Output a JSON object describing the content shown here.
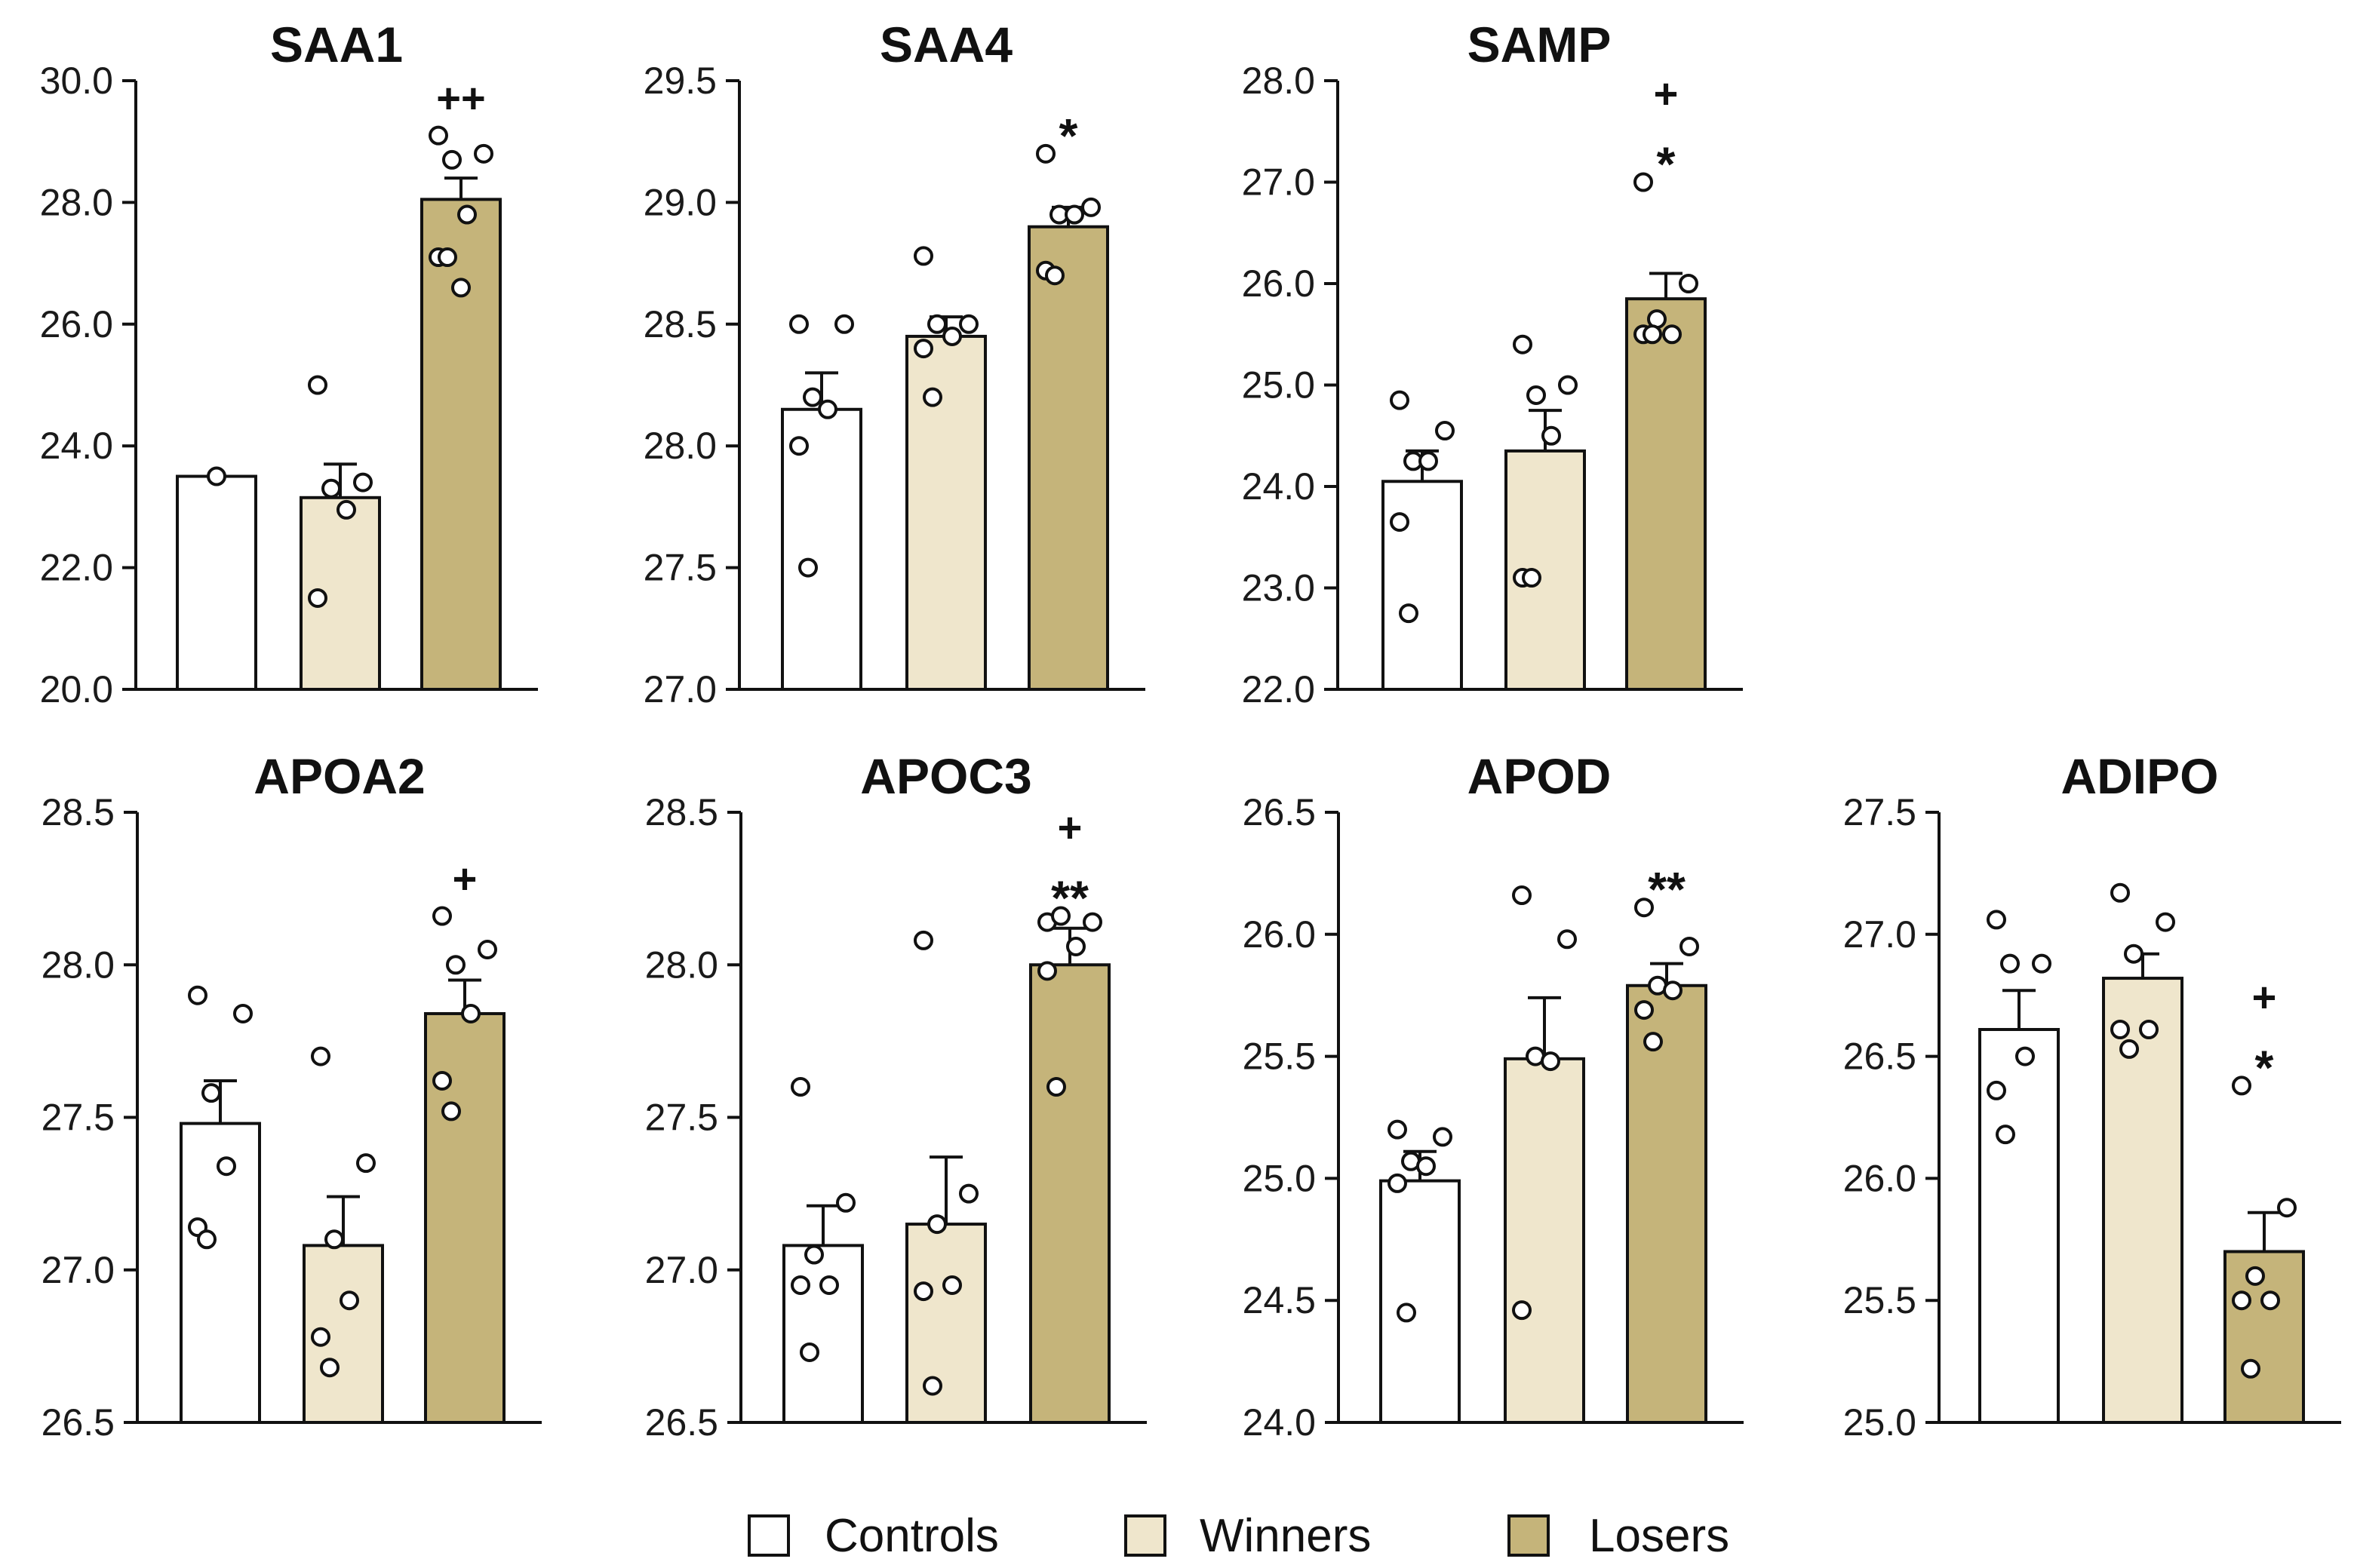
{
  "colors": {
    "Controls": "#ffffff",
    "Winners": "#efe6cc",
    "Losers": "#c5b47a"
  },
  "legend": [
    "Controls",
    "Winners",
    "Losers"
  ],
  "chart_data": [
    {
      "type": "bar",
      "title": "SAA1",
      "ylim": [
        20.0,
        30.0
      ],
      "yticks": [
        "20.0",
        "22.0",
        "24.0",
        "26.0",
        "28.0",
        "30.0"
      ],
      "categories": [
        "Controls",
        "Winners",
        "Losers"
      ],
      "values": [
        23.5,
        23.15,
        28.05
      ],
      "errors": [
        0,
        0.55,
        0.35
      ],
      "points": [
        [
          23.5
        ],
        [
          25.0,
          23.4,
          23.3,
          22.95,
          21.5
        ],
        [
          29.1,
          28.8,
          28.7,
          27.8,
          27.1,
          27.1,
          26.6
        ]
      ],
      "significance": [
        "",
        "",
        "++"
      ]
    },
    {
      "type": "bar",
      "title": "SAA4",
      "ylim": [
        27.0,
        29.5
      ],
      "yticks": [
        "27.0",
        "27.5",
        "28.0",
        "28.5",
        "29.0",
        "29.5"
      ],
      "categories": [
        "Controls",
        "Winners",
        "Losers"
      ],
      "values": [
        28.15,
        28.45,
        28.9
      ],
      "errors": [
        0.15,
        0.08,
        0.08
      ],
      "points": [
        [
          28.5,
          28.5,
          28.2,
          28.15,
          28.0,
          27.5
        ],
        [
          28.78,
          28.5,
          28.5,
          28.45,
          28.4,
          28.2
        ],
        [
          29.2,
          28.98,
          28.95,
          28.95,
          28.72,
          28.7
        ]
      ],
      "significance": [
        "",
        "",
        "*"
      ]
    },
    {
      "type": "bar",
      "title": "SAMP",
      "ylim": [
        22.0,
        28.0
      ],
      "yticks": [
        "22.0",
        "23.0",
        "24.0",
        "25.0",
        "26.0",
        "27.0",
        "28.0"
      ],
      "categories": [
        "Controls",
        "Winners",
        "Losers"
      ],
      "values": [
        24.05,
        24.35,
        25.85
      ],
      "errors": [
        0.3,
        0.4,
        0.25
      ],
      "points": [
        [
          24.85,
          24.55,
          24.25,
          24.25,
          23.65,
          22.75
        ],
        [
          25.4,
          25.0,
          24.9,
          24.5,
          23.1,
          23.1
        ],
        [
          27.0,
          26.0,
          25.65,
          25.5,
          25.5,
          25.5
        ]
      ],
      "significance": [
        "",
        "",
        "+\n*"
      ]
    },
    {
      "type": "bar",
      "title": "APOA2",
      "ylim": [
        26.5,
        28.5
      ],
      "yticks": [
        "26.5",
        "27.0",
        "27.5",
        "28.0",
        "28.5"
      ],
      "categories": [
        "Controls",
        "Winners",
        "Losers"
      ],
      "values": [
        27.48,
        27.08,
        27.84
      ],
      "errors": [
        0.14,
        0.16,
        0.11
      ],
      "points": [
        [
          27.9,
          27.84,
          27.58,
          27.34,
          27.14,
          27.1
        ],
        [
          27.7,
          27.35,
          27.1,
          26.9,
          26.78,
          26.68
        ],
        [
          28.16,
          28.05,
          28.0,
          27.84,
          27.62,
          27.52
        ]
      ],
      "significance": [
        "",
        "",
        "+"
      ]
    },
    {
      "type": "bar",
      "title": "APOC3",
      "ylim": [
        26.5,
        28.5
      ],
      "yticks": [
        "26.5",
        "27.0",
        "27.5",
        "28.0",
        "28.5"
      ],
      "categories": [
        "Controls",
        "Winners",
        "Losers"
      ],
      "values": [
        27.08,
        27.15,
        28.0
      ],
      "errors": [
        0.13,
        0.22,
        0.12
      ],
      "points": [
        [
          27.6,
          27.22,
          27.05,
          26.95,
          26.95,
          26.73
        ],
        [
          28.08,
          27.25,
          27.15,
          26.95,
          26.93,
          26.62
        ],
        [
          28.14,
          28.14,
          28.16,
          28.06,
          27.98,
          27.6
        ]
      ],
      "significance": [
        "",
        "",
        "+\n**"
      ]
    },
    {
      "type": "bar",
      "title": "APOD",
      "ylim": [
        24.0,
        26.5
      ],
      "yticks": [
        "24.0",
        "24.5",
        "25.0",
        "25.5",
        "26.0",
        "26.5"
      ],
      "categories": [
        "Controls",
        "Winners",
        "Losers"
      ],
      "values": [
        24.99,
        25.49,
        25.79
      ],
      "errors": [
        0.12,
        0.25,
        0.09
      ],
      "points": [
        [
          25.2,
          25.17,
          25.07,
          25.05,
          24.98,
          24.45
        ],
        [
          26.16,
          25.98,
          25.5,
          25.48,
          24.46
        ],
        [
          26.11,
          25.95,
          25.79,
          25.77,
          25.69,
          25.56
        ]
      ],
      "significance": [
        "",
        "",
        "**"
      ]
    },
    {
      "type": "bar",
      "title": "ADIPO",
      "ylim": [
        25.0,
        27.5
      ],
      "yticks": [
        "25.0",
        "25.5",
        "26.0",
        "26.5",
        "27.0",
        "27.5"
      ],
      "categories": [
        "Controls",
        "Winners",
        "Losers"
      ],
      "values": [
        26.61,
        26.82,
        25.7
      ],
      "errors": [
        0.16,
        0.1,
        0.16
      ],
      "points": [
        [
          27.06,
          26.88,
          26.88,
          26.5,
          26.36,
          26.18
        ],
        [
          27.17,
          27.05,
          26.92,
          26.61,
          26.61,
          26.53
        ],
        [
          26.38,
          25.88,
          25.6,
          25.5,
          25.5,
          25.22
        ]
      ],
      "significance": [
        "",
        "",
        "+\n*"
      ]
    }
  ]
}
